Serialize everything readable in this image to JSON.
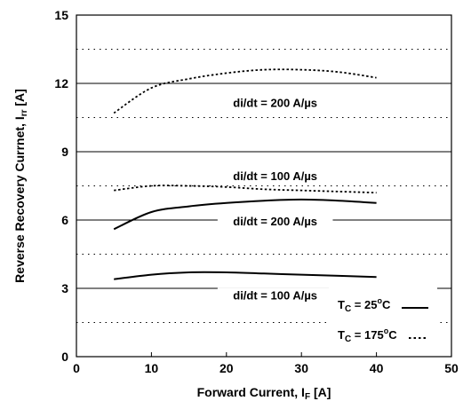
{
  "chart_data": {
    "type": "line",
    "xlabel": "Forward Current, I",
    "xlabel_sub": "F",
    "xlabel_unit": " [A]",
    "ylabel": "Reverse Recovery Currnet, I",
    "ylabel_sub": "rr",
    "ylabel_unit": " [A]",
    "xlim": [
      0,
      50
    ],
    "ylim": [
      0,
      15
    ],
    "x_ticks": [
      "0",
      "10",
      "20",
      "30",
      "40",
      "50"
    ],
    "y_ticks": [
      "0",
      "3",
      "6",
      "9",
      "12",
      "15"
    ],
    "solid_grid_y": [
      3,
      6,
      9,
      12
    ],
    "dotted_grid_y": [
      1.5,
      4.5,
      7.5,
      10.5,
      13.5
    ],
    "series": [
      {
        "tc": "175",
        "di_dt": "200",
        "style": "dotted",
        "x": [
          5,
          10,
          15,
          20,
          25,
          30,
          35,
          40
        ],
        "y": [
          10.7,
          11.8,
          12.2,
          12.45,
          12.6,
          12.6,
          12.5,
          12.25
        ]
      },
      {
        "tc": "175",
        "di_dt": "100",
        "style": "dotted",
        "x": [
          5,
          10,
          15,
          20,
          25,
          30,
          35,
          40
        ],
        "y": [
          7.3,
          7.5,
          7.5,
          7.45,
          7.35,
          7.3,
          7.25,
          7.2
        ]
      },
      {
        "tc": "25",
        "di_dt": "200",
        "style": "solid",
        "x": [
          5,
          10,
          15,
          20,
          25,
          30,
          35,
          40
        ],
        "y": [
          5.6,
          6.35,
          6.6,
          6.75,
          6.85,
          6.9,
          6.85,
          6.75
        ]
      },
      {
        "tc": "25",
        "di_dt": "100",
        "style": "solid",
        "x": [
          5,
          10,
          15,
          20,
          25,
          30,
          35,
          40
        ],
        "y": [
          3.4,
          3.6,
          3.7,
          3.7,
          3.65,
          3.6,
          3.55,
          3.5
        ]
      }
    ],
    "annotations": [
      {
        "text": "di/dt = 200 A/µs",
        "x": 26.5,
        "y": 11.0
      },
      {
        "text": "di/dt = 100 A/µs",
        "x": 26.5,
        "y": 7.8
      },
      {
        "text": "di/dt = 200 A/µs",
        "x": 26.5,
        "y": 5.8
      },
      {
        "text": "di/dt = 100 A/µs",
        "x": 26.5,
        "y": 2.55
      }
    ],
    "legend": {
      "position": "bottom-right",
      "items": [
        {
          "label_main": "T",
          "label_sub": "C",
          "label_rest": " = 25",
          "label_sup": "o",
          "label_end": "C",
          "style": "solid"
        },
        {
          "label_main": "T",
          "label_sub": "C",
          "label_rest": " = 175",
          "label_sup": "o",
          "label_end": "C",
          "style": "dotted"
        }
      ]
    }
  }
}
